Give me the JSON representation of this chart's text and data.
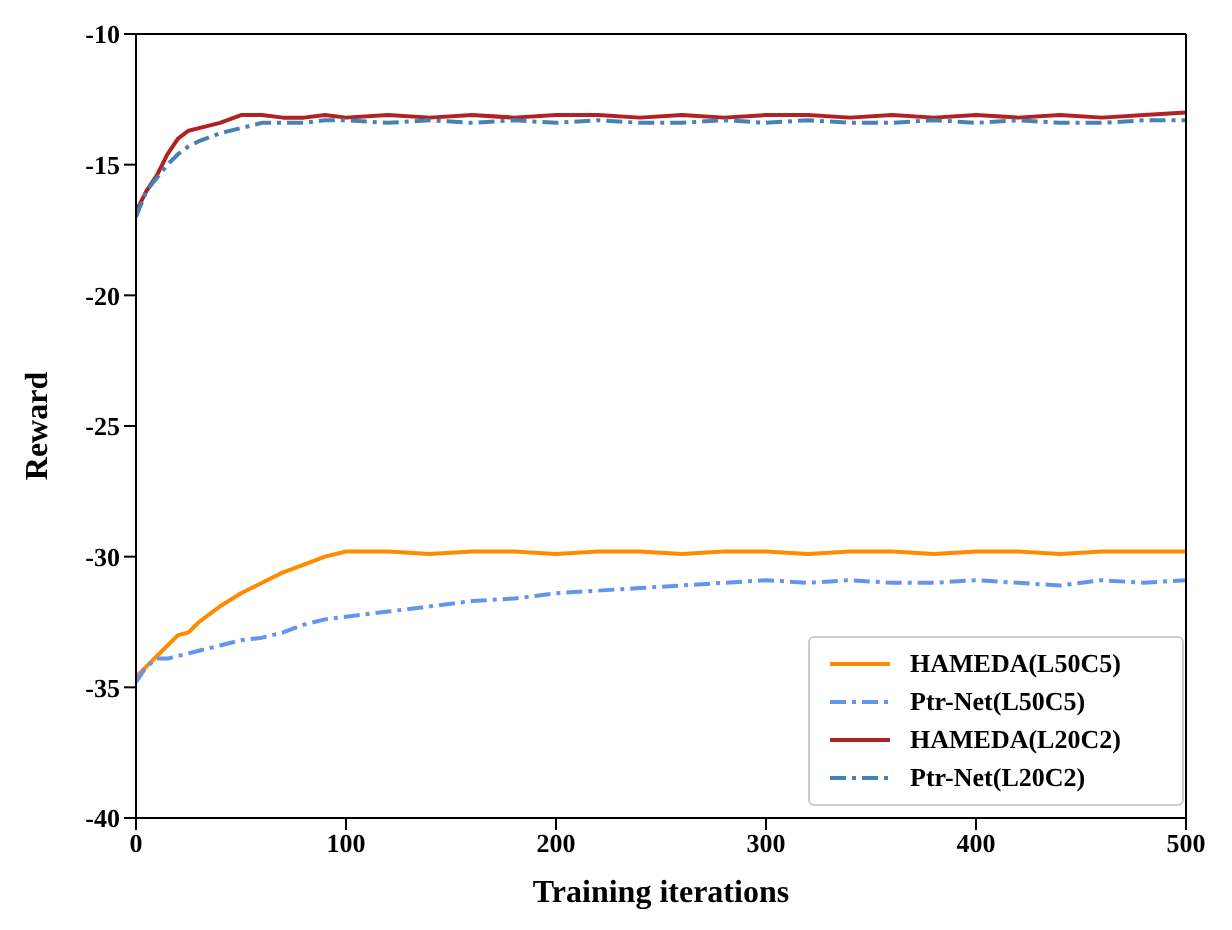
{
  "chart_data": {
    "type": "line",
    "xlabel": "Training iterations",
    "ylabel": "Reward",
    "x": [
      0,
      5,
      10,
      15,
      20,
      25,
      30,
      40,
      50,
      60,
      70,
      80,
      90,
      100,
      120,
      140,
      160,
      180,
      200,
      220,
      240,
      260,
      280,
      300,
      320,
      340,
      360,
      380,
      400,
      420,
      440,
      460,
      480,
      500
    ],
    "series": [
      {
        "name": "HAMEDA(L50C5)",
        "color": "#ff8c00",
        "line_style": "solid",
        "values": [
          -34.6,
          -34.2,
          -33.8,
          -33.4,
          -33.0,
          -32.9,
          -32.5,
          -31.9,
          -31.4,
          -31.0,
          -30.6,
          -30.3,
          -30.0,
          -29.8,
          -29.8,
          -29.9,
          -29.8,
          -29.8,
          -29.9,
          -29.8,
          -29.8,
          -29.9,
          -29.8,
          -29.8,
          -29.9,
          -29.8,
          -29.8,
          -29.9,
          -29.8,
          -29.8,
          -29.9,
          -29.8,
          -29.8,
          -29.8
        ]
      },
      {
        "name": "Ptr-Net(L50C5)",
        "color": "#6495ed",
        "line_style": "dashed",
        "values": [
          -34.8,
          -34.2,
          -33.9,
          -33.9,
          -33.8,
          -33.7,
          -33.6,
          -33.4,
          -33.2,
          -33.1,
          -32.9,
          -32.6,
          -32.4,
          -32.3,
          -32.1,
          -31.9,
          -31.7,
          -31.6,
          -31.4,
          -31.3,
          -31.2,
          -31.1,
          -31.0,
          -30.9,
          -31.0,
          -30.9,
          -31.0,
          -31.0,
          -30.9,
          -31.0,
          -31.1,
          -30.9,
          -31.0,
          -30.9
        ]
      },
      {
        "name": "HAMEDA(L20C2)",
        "color": "#b22222",
        "line_style": "solid",
        "values": [
          -16.8,
          -16.0,
          -15.4,
          -14.6,
          -14.0,
          -13.7,
          -13.6,
          -13.4,
          -13.1,
          -13.1,
          -13.2,
          -13.2,
          -13.1,
          -13.2,
          -13.1,
          -13.2,
          -13.1,
          -13.2,
          -13.1,
          -13.1,
          -13.2,
          -13.1,
          -13.2,
          -13.1,
          -13.1,
          -13.2,
          -13.1,
          -13.2,
          -13.1,
          -13.2,
          -13.1,
          -13.2,
          -13.1,
          -13.0
        ]
      },
      {
        "name": "Ptr-Net(L20C2)",
        "color": "#4682b4",
        "line_style": "dashed",
        "values": [
          -17.0,
          -16.0,
          -15.5,
          -15.0,
          -14.6,
          -14.3,
          -14.1,
          -13.8,
          -13.6,
          -13.4,
          -13.4,
          -13.4,
          -13.3,
          -13.3,
          -13.4,
          -13.3,
          -13.4,
          -13.3,
          -13.4,
          -13.3,
          -13.4,
          -13.4,
          -13.3,
          -13.4,
          -13.3,
          -13.4,
          -13.4,
          -13.3,
          -13.4,
          -13.3,
          -13.4,
          -13.4,
          -13.3,
          -13.3
        ]
      }
    ],
    "xlim": [
      0,
      500
    ],
    "xticks": [
      0,
      100,
      200,
      300,
      400,
      500
    ],
    "ylim": [
      -40,
      -10
    ],
    "yticks": [
      -40,
      -35,
      -30,
      -25,
      -20,
      -15,
      -10
    ],
    "grid": false,
    "legend": "bottom right",
    "marker": "none"
  }
}
